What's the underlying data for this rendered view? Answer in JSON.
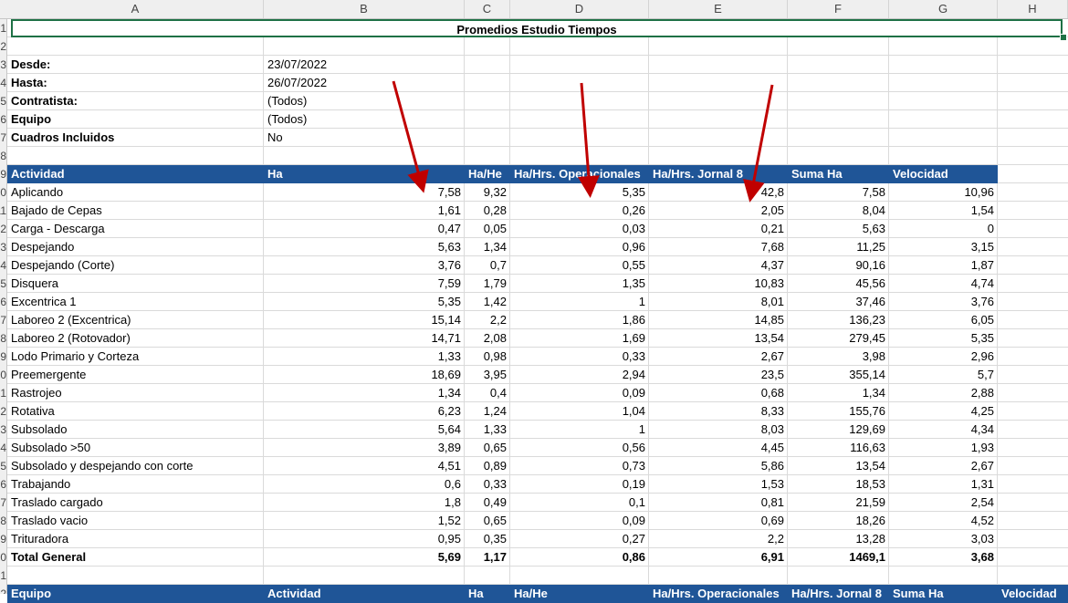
{
  "columns": [
    "A",
    "B",
    "C",
    "D",
    "E",
    "F",
    "G",
    "H"
  ],
  "title": "Promedios Estudio Tiempos",
  "filters": [
    {
      "label": "Desde:",
      "value": "23/07/2022"
    },
    {
      "label": "Hasta:",
      "value": "26/07/2022"
    },
    {
      "label": "Contratista:",
      "value": "(Todos)"
    },
    {
      "label": "Equipo",
      "value": "(Todos)"
    },
    {
      "label": "Cuadros Incluidos",
      "value": "No"
    }
  ],
  "table_headers": [
    "Actividad",
    "Ha",
    "Ha/He",
    "Ha/Hrs. Operacionales",
    "Ha/Hrs. Jornal 8",
    "Suma Ha",
    "Velocidad"
  ],
  "rows": [
    [
      "Aplicando",
      "7,58",
      "9,32",
      "5,35",
      "42,8",
      "7,58",
      "10,96"
    ],
    [
      "Bajado de Cepas",
      "1,61",
      "0,28",
      "0,26",
      "2,05",
      "8,04",
      "1,54"
    ],
    [
      "Carga - Descarga",
      "0,47",
      "0,05",
      "0,03",
      "0,21",
      "5,63",
      "0"
    ],
    [
      "Despejando",
      "5,63",
      "1,34",
      "0,96",
      "7,68",
      "11,25",
      "3,15"
    ],
    [
      "Despejando (Corte)",
      "3,76",
      "0,7",
      "0,55",
      "4,37",
      "90,16",
      "1,87"
    ],
    [
      "Disquera",
      "7,59",
      "1,79",
      "1,35",
      "10,83",
      "45,56",
      "4,74"
    ],
    [
      "Excentrica 1",
      "5,35",
      "1,42",
      "1",
      "8,01",
      "37,46",
      "3,76"
    ],
    [
      "Laboreo 2 (Excentrica)",
      "15,14",
      "2,2",
      "1,86",
      "14,85",
      "136,23",
      "6,05"
    ],
    [
      "Laboreo 2 (Rotovador)",
      "14,71",
      "2,08",
      "1,69",
      "13,54",
      "279,45",
      "5,35"
    ],
    [
      "Lodo Primario y Corteza",
      "1,33",
      "0,98",
      "0,33",
      "2,67",
      "3,98",
      "2,96"
    ],
    [
      "Preemergente",
      "18,69",
      "3,95",
      "2,94",
      "23,5",
      "355,14",
      "5,7"
    ],
    [
      "Rastrojeo",
      "1,34",
      "0,4",
      "0,09",
      "0,68",
      "1,34",
      "2,88"
    ],
    [
      "Rotativa",
      "6,23",
      "1,24",
      "1,04",
      "8,33",
      "155,76",
      "4,25"
    ],
    [
      "Subsolado",
      "5,64",
      "1,33",
      "1",
      "8,03",
      "129,69",
      "4,34"
    ],
    [
      "Subsolado >50",
      "3,89",
      "0,65",
      "0,56",
      "4,45",
      "116,63",
      "1,93"
    ],
    [
      "Subsolado y despejando con corte",
      "4,51",
      "0,89",
      "0,73",
      "5,86",
      "13,54",
      "2,67"
    ],
    [
      "Trabajando",
      "0,6",
      "0,33",
      "0,19",
      "1,53",
      "18,53",
      "1,31"
    ],
    [
      "Traslado cargado",
      "1,8",
      "0,49",
      "0,1",
      "0,81",
      "21,59",
      "2,54"
    ],
    [
      "Traslado vacio",
      "1,52",
      "0,65",
      "0,09",
      "0,69",
      "18,26",
      "4,52"
    ],
    [
      "Trituradora",
      "0,95",
      "0,35",
      "0,27",
      "2,2",
      "13,28",
      "3,03"
    ]
  ],
  "total": [
    "Total General",
    "5,69",
    "1,17",
    "0,86",
    "6,91",
    "1469,1",
    "3,68"
  ],
  "second_headers": [
    "Equipo",
    "Actividad",
    "Ha",
    "Ha/He",
    "Ha/Hrs. Operacionales",
    "Ha/Hrs. Jornal 8",
    "Suma Ha",
    "Velocidad"
  ],
  "colors": {
    "header_blue": "#1f5597",
    "arrow_red": "#c00000",
    "selection_green": "#1e7145"
  }
}
